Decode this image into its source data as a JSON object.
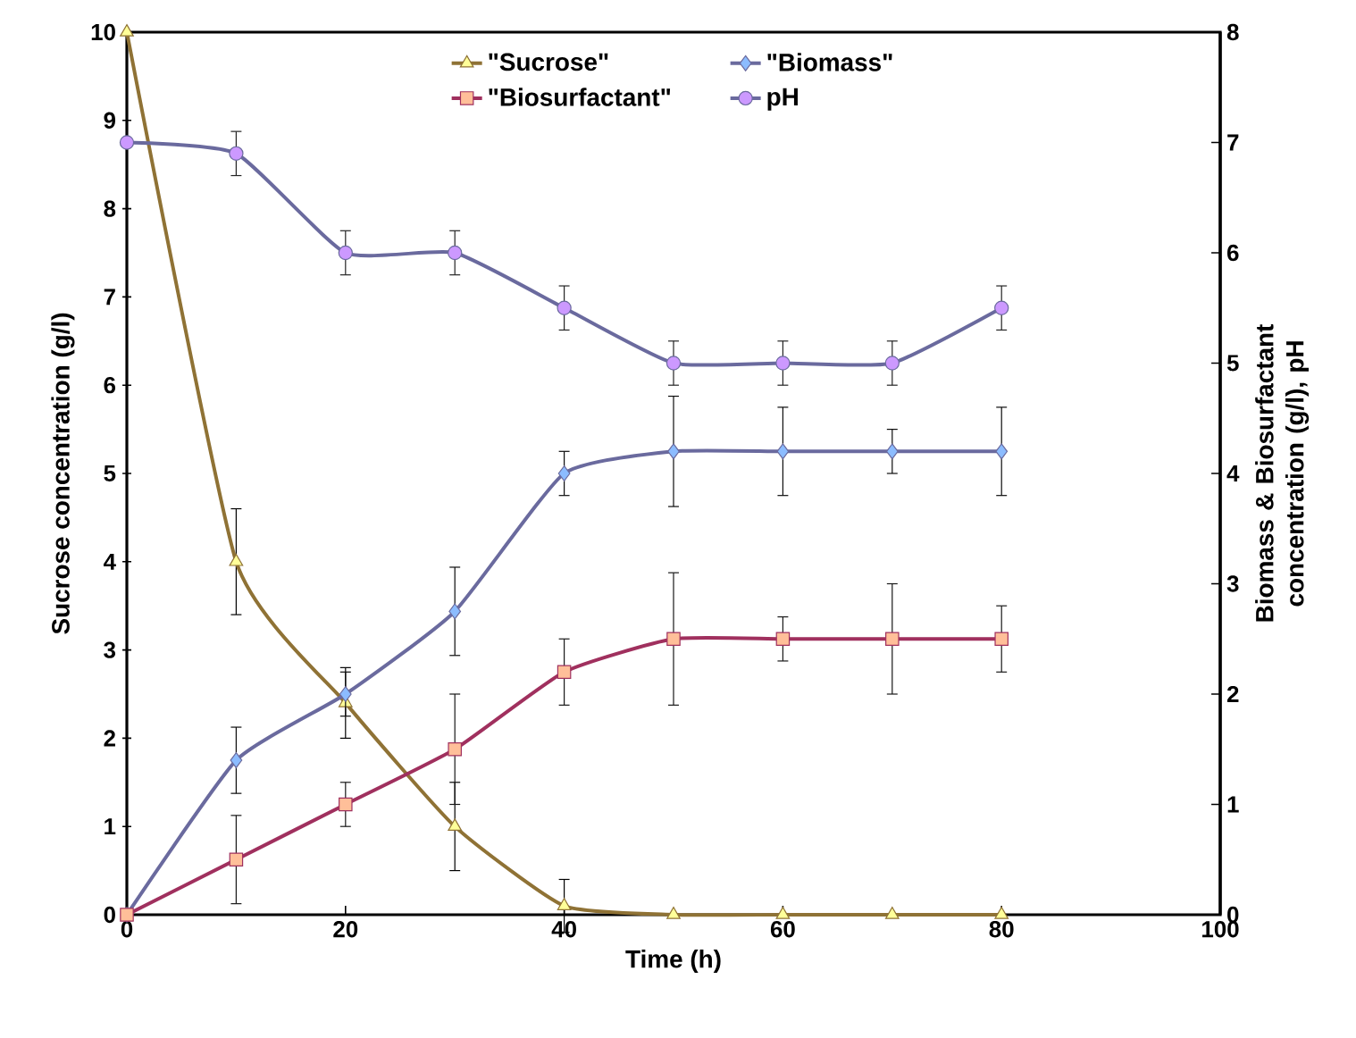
{
  "chart_data": {
    "type": "line",
    "xlabel": "Time (h)",
    "ylabel": "Sucrose concentration (g/l)",
    "y2label": "Biomass & Biosurfactant concentration (g/l), pH",
    "x": [
      0,
      10,
      20,
      30,
      40,
      50,
      60,
      70,
      80
    ],
    "xlim": [
      0,
      100
    ],
    "xticks": [
      0,
      20,
      40,
      60,
      80,
      100
    ],
    "ylim": [
      0,
      10
    ],
    "yticks": [
      0,
      1,
      2,
      3,
      4,
      5,
      6,
      7,
      8,
      9,
      10
    ],
    "y2lim": [
      0,
      8
    ],
    "y2ticks": [
      0,
      1,
      2,
      3,
      4,
      5,
      6,
      7,
      8
    ],
    "legend": "top",
    "series": [
      {
        "name": "\"Sucrose\"",
        "color": "#8f7235",
        "colors": [
          "#ffff99",
          "#ffff99",
          "#ffff99",
          "#ffff99",
          "#ffff99",
          "#ffff99",
          "#ffff99",
          "#ffff99",
          "#ffff99"
        ],
        "marker": "triangle",
        "values": [
          10,
          4.0,
          2.4,
          1.0,
          0.1,
          0,
          0,
          0,
          0
        ],
        "errors": [
          null,
          0.6,
          0.4,
          0.5,
          0.3,
          null,
          null,
          null,
          null
        ]
      },
      {
        "name": "\"Biomass\"",
        "axis": "y2",
        "color": "#6a6a9e",
        "colors": [
          "#8cbcff",
          "#8cbcff",
          "#8cbcff",
          "#8cbcff",
          "#8cbcff",
          "#8cbcff",
          "#8cbcff",
          "#8cbcff",
          "#8cbcff"
        ],
        "marker": "diamond",
        "values": [
          0,
          1.4,
          2.0,
          2.75,
          4.0,
          4.2,
          4.2,
          4.2,
          4.2
        ],
        "errors": [
          null,
          0.3,
          0.2,
          0.4,
          0.2,
          0.5,
          0.4,
          0.2,
          0.4
        ]
      },
      {
        "name": "\"Biosurfactant\"",
        "axis": "y2",
        "color": "#a0305e",
        "colors": [
          "#ffbf99",
          "#ffbf99",
          "#ffbf99",
          "#ffbf99",
          "#ffbf99",
          "#ffbf99",
          "#ffbf99",
          "#ffbf99",
          "#ffbf99"
        ],
        "marker": "square",
        "values": [
          0,
          0.5,
          1.0,
          1.5,
          2.2,
          2.5,
          2.5,
          2.5,
          2.5
        ],
        "errors": [
          null,
          0.4,
          0.2,
          0.5,
          0.3,
          0.6,
          0.2,
          0.5,
          0.3
        ]
      },
      {
        "name": "pH",
        "axis": "y2",
        "color": "#6a6a9e",
        "colors": [
          "#cc99ff",
          "#cc99ff",
          "#cc99ff",
          "#cc99ff",
          "#cc99ff",
          "#cc99ff",
          "#cc99ff",
          "#cc99ff",
          "#cc99ff"
        ],
        "marker": "circle",
        "values": [
          7.0,
          6.9,
          6.0,
          6.0,
          5.5,
          5.0,
          5.0,
          5.0,
          5.5
        ],
        "errors": [
          null,
          0.2,
          0.2,
          0.2,
          0.2,
          0.2,
          0.2,
          0.2,
          0.2
        ]
      }
    ]
  }
}
